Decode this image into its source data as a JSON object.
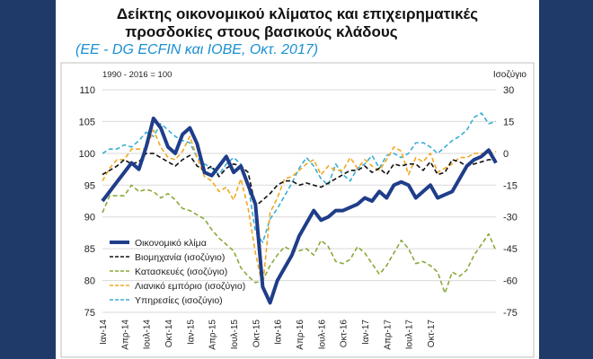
{
  "colors": {
    "frame": "#1f3a68",
    "economic": "#1f3d8a",
    "industry": "#111111",
    "construction": "#8aaa3a",
    "retail": "#f0a820",
    "services": "#3aaed4"
  },
  "chart_data": {
    "type": "line",
    "title": "Δείκτης οικονομικού κλίματος και επιχειρηματικές",
    "title_line2": "προσδοκίες στους βασικούς κλάδους",
    "subtitle": "(EE - DG ECFIN και ΙΟΒΕ, Οκτ. 2017)",
    "left_axis_label": "1990 - 2016 = 100",
    "right_axis_label": "Ισοζύγιο",
    "y_left": {
      "min": 75,
      "max": 110,
      "ticks": [
        "110",
        "105",
        "100",
        "95",
        "90",
        "85",
        "80",
        "75"
      ]
    },
    "y_right": {
      "min": -75,
      "max": 30,
      "ticks": [
        "30",
        "15",
        "0",
        "-15",
        "-30",
        "-45",
        "-60",
        "-75"
      ]
    },
    "x_ticks": [
      "Ιαν-14",
      "Απρ-14",
      "Ιουλ-14",
      "Οκτ-14",
      "Ιαν-15",
      "Απρ-15",
      "Ιουλ-15",
      "Οκτ-15",
      "Ιαν-16",
      "Απρ-16",
      "Ιουλ-16",
      "Οκτ-16",
      "Ιαν-17",
      "Απρ-17",
      "Ιουλ-17",
      "Οκτ-17"
    ],
    "legend_position": "lower-left",
    "series": [
      {
        "name": "Οικονομικό κλίμα",
        "axis": "left",
        "values": [
          92.5,
          94,
          95.5,
          97,
          98.5,
          97.5,
          101,
          105.5,
          104,
          101,
          100,
          103,
          104,
          101.5,
          97,
          96.5,
          98,
          99.5,
          97,
          98,
          95,
          92,
          79,
          76.5,
          80,
          82,
          84,
          87,
          89,
          91,
          89.5,
          90,
          91,
          91,
          91.5,
          92,
          93,
          92.5,
          94,
          93,
          95,
          95.5,
          95,
          93,
          94,
          95,
          93,
          93.5,
          94,
          96,
          98,
          99,
          99.5,
          100.5,
          98.5
        ]
      },
      {
        "name": "Βιομηχανία (ισοζύγιο)",
        "axis": "right",
        "values": [
          -10,
          -8,
          -6,
          -3,
          -5,
          -4,
          0,
          0,
          -2,
          -4,
          -6,
          -3,
          -1,
          -6,
          -8,
          -6,
          -11,
          -7,
          -5,
          -6,
          -9,
          -25,
          -22,
          -19,
          -15,
          -13,
          -13,
          -15,
          -14,
          -15,
          -16,
          -14,
          -12,
          -10,
          -8,
          -8,
          -6,
          -9,
          -7,
          -10,
          -5,
          -6,
          -5,
          -5,
          -8,
          -4,
          -10,
          -9,
          -3,
          -4,
          -6,
          -5,
          -4,
          -3,
          -3
        ]
      },
      {
        "name": "Κατασκευές (ισοζύγιο)",
        "axis": "right",
        "values": [
          -28,
          -20,
          -20,
          -20,
          -15,
          -18,
          -17,
          -18,
          -21,
          -19,
          -22,
          -26,
          -27,
          -29,
          -31,
          -36,
          -40,
          -43,
          -46,
          -54,
          -58,
          -61,
          -60,
          -53,
          -48,
          -44,
          -46,
          -46,
          -45,
          -48,
          -41,
          -44,
          -51,
          -52,
          -50,
          -44,
          -47,
          -52,
          -57,
          -53,
          -47,
          -41,
          -45,
          -52,
          -51,
          -53,
          -56,
          -66,
          -56,
          -58,
          -55,
          -48,
          -43,
          -38,
          -46
        ]
      },
      {
        "name": "Λιανικό εμπόριο (ισοζύγιο)",
        "axis": "right",
        "values": [
          -13,
          -7,
          -3,
          -3,
          2,
          2,
          2,
          11,
          3,
          -2,
          -3,
          1,
          8,
          -2,
          -11,
          -13,
          -18,
          -16,
          -22,
          -12,
          -26,
          -47,
          -63,
          -28,
          -21,
          -12,
          -11,
          -8,
          -5,
          -3,
          -10,
          -6,
          -8,
          -8,
          -2,
          -7,
          -3,
          -6,
          -8,
          -3,
          3,
          1,
          -10,
          -2,
          -4,
          0,
          -9,
          -7,
          -5,
          -2,
          -2,
          0,
          0,
          0,
          1
        ]
      },
      {
        "name": "Υπηρεσίες (ισοζύγιο)",
        "axis": "right",
        "values": [
          0,
          2,
          2,
          4,
          3,
          6,
          10,
          8,
          14,
          11,
          8,
          6,
          5,
          -2,
          -5,
          -7,
          -10,
          -5,
          -2,
          -5,
          -15,
          -37,
          -42,
          -31,
          -26,
          -20,
          -14,
          -7,
          -2,
          -6,
          -12,
          -15,
          -5,
          -10,
          -13,
          -7,
          -5,
          -1,
          -7,
          -1,
          0,
          -2,
          0,
          5,
          5,
          3,
          0,
          3,
          6,
          8,
          11,
          17,
          19,
          14,
          15
        ]
      }
    ]
  }
}
